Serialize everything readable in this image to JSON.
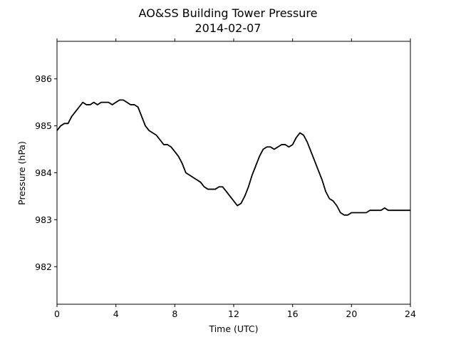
{
  "chart_data": {
    "type": "line",
    "title": "AO&SS Building Tower Pressure",
    "subtitle": "2014-02-07",
    "xlabel": "Time (UTC)",
    "ylabel": "Pressure (hPa)",
    "xlim": [
      0,
      24
    ],
    "ylim": [
      981.2,
      986.8
    ],
    "xticks": [
      0,
      4,
      8,
      12,
      16,
      20,
      24
    ],
    "yticks": [
      982,
      983,
      984,
      985,
      986
    ],
    "grid": false,
    "line_color": "#000000",
    "series": [
      {
        "x": [
          0.0,
          0.25,
          0.5,
          0.75,
          1.0,
          1.25,
          1.5,
          1.75,
          2.0,
          2.25,
          2.5,
          2.75,
          3.0,
          3.25,
          3.5,
          3.75,
          4.0,
          4.25,
          4.5,
          4.75,
          5.0,
          5.25,
          5.5,
          5.75,
          6.0,
          6.25,
          6.5,
          6.75,
          7.0,
          7.25,
          7.5,
          7.75,
          8.0,
          8.25,
          8.5,
          8.75,
          9.0,
          9.25,
          9.5,
          9.75,
          10.0,
          10.25,
          10.5,
          10.75,
          11.0,
          11.25,
          11.5,
          11.75,
          12.0,
          12.25,
          12.5,
          12.75,
          13.0,
          13.25,
          13.5,
          13.75,
          14.0,
          14.25,
          14.5,
          14.75,
          15.0,
          15.25,
          15.5,
          15.75,
          16.0,
          16.25,
          16.5,
          16.75,
          17.0,
          17.25,
          17.5,
          17.75,
          18.0,
          18.25,
          18.5,
          18.75,
          19.0,
          19.25,
          19.5,
          19.75,
          20.0,
          20.25,
          20.5,
          20.75,
          21.0,
          21.25,
          21.5,
          21.75,
          22.0,
          22.25,
          22.5,
          22.75,
          23.0,
          23.25,
          23.5,
          23.75,
          24.0
        ],
        "y": [
          984.9,
          985.0,
          985.05,
          985.05,
          985.2,
          985.3,
          985.4,
          985.5,
          985.45,
          985.45,
          985.5,
          985.45,
          985.5,
          985.5,
          985.5,
          985.45,
          985.5,
          985.55,
          985.55,
          985.5,
          985.45,
          985.45,
          985.4,
          985.2,
          985.0,
          984.9,
          984.85,
          984.8,
          984.7,
          984.6,
          984.6,
          984.55,
          984.45,
          984.35,
          984.2,
          984.0,
          983.95,
          983.9,
          983.85,
          983.8,
          983.7,
          983.65,
          983.65,
          983.65,
          983.7,
          983.7,
          983.6,
          983.5,
          983.4,
          983.3,
          983.35,
          983.5,
          983.7,
          983.95,
          984.15,
          984.35,
          984.5,
          984.55,
          984.55,
          984.5,
          984.55,
          984.6,
          984.6,
          984.55,
          984.6,
          984.75,
          984.85,
          984.8,
          984.65,
          984.45,
          984.25,
          984.05,
          983.85,
          983.6,
          983.45,
          983.4,
          983.3,
          983.15,
          983.1,
          983.1,
          983.15,
          983.15,
          983.15,
          983.15,
          983.15,
          983.2,
          983.2,
          983.2,
          983.2,
          983.25,
          983.2,
          983.2,
          983.2,
          983.2,
          983.2,
          983.2,
          983.2
        ]
      }
    ]
  }
}
